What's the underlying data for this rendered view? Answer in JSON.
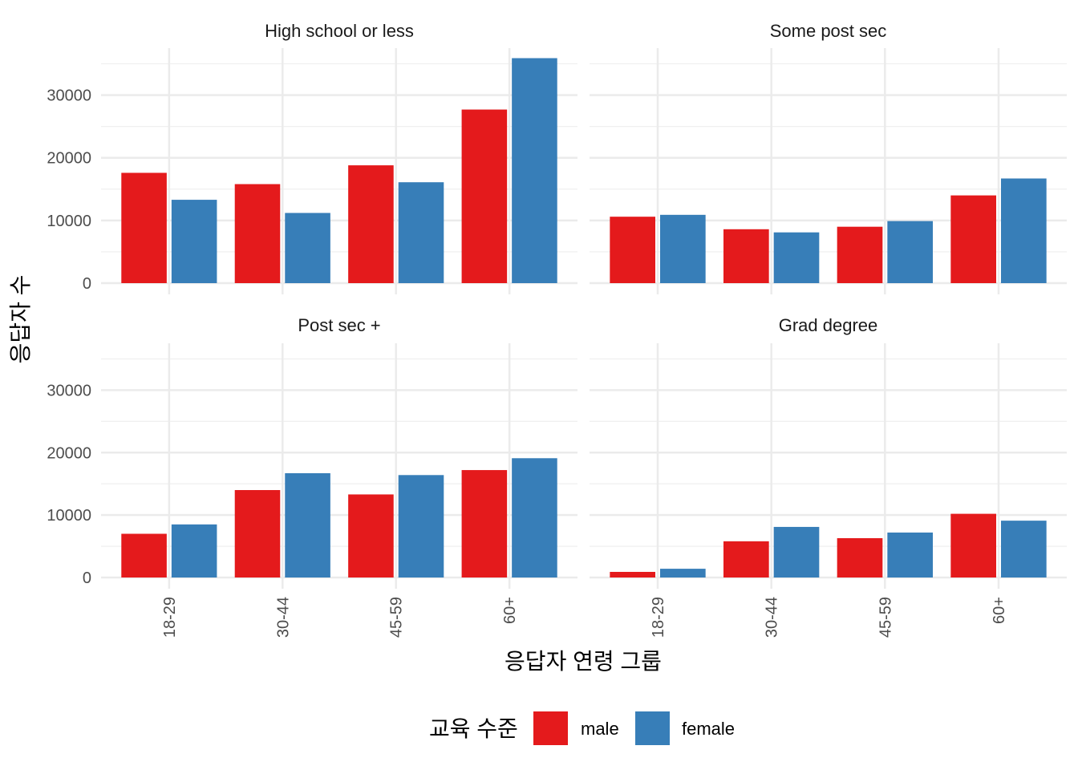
{
  "chart_data": {
    "type": "bar",
    "layout": "facet 2x2",
    "xlabel": "응답자 연령 그룹",
    "ylabel": "응답자 수",
    "categories": [
      "18-29",
      "30-44",
      "45-59",
      "60+"
    ],
    "yticks": [
      0,
      10000,
      20000,
      30000
    ],
    "ylim": [
      0,
      37500
    ],
    "grid": true,
    "legend": {
      "title": "교육 수준",
      "position": "bottom",
      "entries": [
        "male",
        "female"
      ]
    },
    "colors": {
      "male": "#E41A1C",
      "female": "#377EB8"
    },
    "panels": [
      {
        "title": "High school or less",
        "series": [
          {
            "name": "male",
            "values": [
              17600,
              15800,
              18800,
              27700
            ]
          },
          {
            "name": "female",
            "values": [
              13300,
              11200,
              16100,
              35900
            ]
          }
        ]
      },
      {
        "title": "Some post sec",
        "series": [
          {
            "name": "male",
            "values": [
              10600,
              8600,
              9000,
              14000
            ]
          },
          {
            "name": "female",
            "values": [
              10900,
              8100,
              9900,
              16700
            ]
          }
        ]
      },
      {
        "title": "Post sec +",
        "series": [
          {
            "name": "male",
            "values": [
              7000,
              14000,
              13300,
              17200
            ]
          },
          {
            "name": "female",
            "values": [
              8500,
              16700,
              16400,
              19100
            ]
          }
        ]
      },
      {
        "title": "Grad degree",
        "series": [
          {
            "name": "male",
            "values": [
              900,
              5800,
              6300,
              10200
            ]
          },
          {
            "name": "female",
            "values": [
              1400,
              8100,
              7200,
              9100
            ]
          }
        ]
      }
    ]
  }
}
